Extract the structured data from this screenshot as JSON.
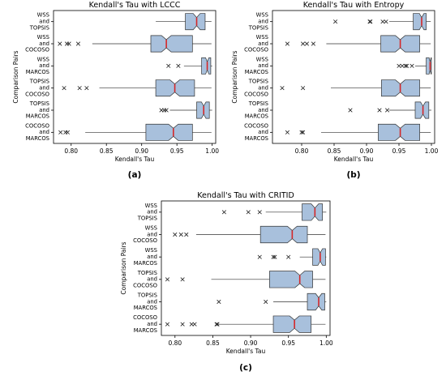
{
  "chart_data": [
    {
      "type": "boxplot",
      "panel_label": "(a)",
      "title": "Kendall's Tau with LCCC",
      "xlabel": "Kendall's Tau",
      "ylabel": "Comparison Pairs",
      "xlim": [
        0.775,
        1.005
      ],
      "xticks": [
        "0.80",
        "0.85",
        "0.90",
        "0.95",
        "1.00"
      ],
      "series": [
        {
          "name": [
            "WSS",
            "and",
            "TOPSIS"
          ],
          "whislo": 0.92,
          "q1": 0.962,
          "med": 0.978,
          "q3": 0.99,
          "whishi": 0.999,
          "fliers": []
        },
        {
          "name": [
            "WSS",
            "and",
            "COCOSO"
          ],
          "whislo": 0.83,
          "q1": 0.913,
          "med": 0.935,
          "q3": 0.972,
          "whishi": 0.999,
          "fliers": [
            0.784,
            0.794,
            0.797,
            0.81
          ]
        },
        {
          "name": [
            "WSS",
            "and",
            "MARCOS"
          ],
          "whislo": 0.96,
          "q1": 0.985,
          "med": 0.993,
          "q3": 0.998,
          "whishi": 1.0,
          "fliers": [
            0.938,
            0.952
          ]
        },
        {
          "name": [
            "TOPSIS",
            "and",
            "COCOSO"
          ],
          "whislo": 0.84,
          "q1": 0.92,
          "med": 0.947,
          "q3": 0.975,
          "whishi": 0.999,
          "fliers": [
            0.79,
            0.812,
            0.822
          ]
        },
        {
          "name": [
            "TOPSIS",
            "and",
            "MARCOS"
          ],
          "whislo": 0.94,
          "q1": 0.978,
          "med": 0.988,
          "q3": 0.996,
          "whishi": 1.0,
          "fliers": [
            0.928,
            0.932,
            0.935
          ]
        },
        {
          "name": [
            "COCOSO",
            "and",
            "MARCOS"
          ],
          "whislo": 0.82,
          "q1": 0.906,
          "med": 0.945,
          "q3": 0.972,
          "whishi": 0.999,
          "fliers": [
            0.785,
            0.792,
            0.795
          ]
        }
      ]
    },
    {
      "type": "boxplot",
      "panel_label": "(b)",
      "title": "Kendall's Tau with Entropy",
      "xlabel": "Kendall's Tau",
      "ylabel": "Comparison Pairs",
      "xlim": [
        0.755,
        1.005
      ],
      "xticks": [
        "0.80",
        "0.85",
        "0.90",
        "0.95",
        "1.00"
      ],
      "series": [
        {
          "name": [
            "WSS",
            "and",
            "TOPSIS"
          ],
          "whislo": 0.935,
          "q1": 0.972,
          "med": 0.985,
          "q3": 0.992,
          "whishi": 0.999,
          "fliers": [
            0.852,
            0.905,
            0.906,
            0.925,
            0.93
          ]
        },
        {
          "name": [
            "WSS",
            "and",
            "COCOSO"
          ],
          "whislo": 0.838,
          "q1": 0.922,
          "med": 0.952,
          "q3": 0.982,
          "whishi": 0.999,
          "fliers": [
            0.778,
            0.802,
            0.808,
            0.818
          ]
        },
        {
          "name": [
            "WSS",
            "and",
            "MARCOS"
          ],
          "whislo": 0.975,
          "q1": 0.992,
          "med": 0.998,
          "q3": 1.0,
          "whishi": 1.0,
          "fliers": [
            0.95,
            0.955,
            0.96,
            0.962,
            0.97
          ]
        },
        {
          "name": [
            "TOPSIS",
            "and",
            "COCOSO"
          ],
          "whislo": 0.845,
          "q1": 0.923,
          "med": 0.952,
          "q3": 0.982,
          "whishi": 0.999,
          "fliers": [
            0.77,
            0.802
          ]
        },
        {
          "name": [
            "TOPSIS",
            "and",
            "MARCOS"
          ],
          "whislo": 0.935,
          "q1": 0.975,
          "med": 0.987,
          "q3": 0.996,
          "whishi": 1.0,
          "fliers": [
            0.875,
            0.92,
            0.932
          ]
        },
        {
          "name": [
            "COCOSO",
            "and",
            "MARCOS"
          ],
          "whislo": 0.83,
          "q1": 0.918,
          "med": 0.952,
          "q3": 0.982,
          "whishi": 0.999,
          "fliers": [
            0.778,
            0.8,
            0.802
          ]
        }
      ]
    },
    {
      "type": "boxplot",
      "panel_label": "(c)",
      "title": "Kendall's Tau with CRITID",
      "xlabel": "Kendall's Tau",
      "ylabel": "Comparison Pairs",
      "xlim": [
        0.782,
        1.005
      ],
      "xticks": [
        "0.80",
        "0.85",
        "0.90",
        "0.95",
        "1.00"
      ],
      "series": [
        {
          "name": [
            "WSS",
            "and",
            "TOPSIS"
          ],
          "whislo": 0.92,
          "q1": 0.968,
          "med": 0.985,
          "q3": 0.995,
          "whishi": 1.0,
          "fliers": [
            0.865,
            0.897,
            0.912
          ]
        },
        {
          "name": [
            "WSS",
            "and",
            "COCOSO"
          ],
          "whislo": 0.828,
          "q1": 0.913,
          "med": 0.955,
          "q3": 0.975,
          "whishi": 0.999,
          "fliers": [
            0.8,
            0.808,
            0.815
          ]
        },
        {
          "name": [
            "WSS",
            "and",
            "MARCOS"
          ],
          "whislo": 0.965,
          "q1": 0.982,
          "med": 0.992,
          "q3": 0.999,
          "whishi": 1.0,
          "fliers": [
            0.912,
            0.93,
            0.932,
            0.95
          ]
        },
        {
          "name": [
            "TOPSIS",
            "and",
            "COCOSO"
          ],
          "whislo": 0.848,
          "q1": 0.925,
          "med": 0.965,
          "q3": 0.982,
          "whishi": 0.999,
          "fliers": [
            0.79,
            0.81
          ]
        },
        {
          "name": [
            "TOPSIS",
            "and",
            "MARCOS"
          ],
          "whislo": 0.93,
          "q1": 0.975,
          "med": 0.99,
          "q3": 0.998,
          "whishi": 1.0,
          "fliers": [
            0.858,
            0.92
          ]
        },
        {
          "name": [
            "COCOSO",
            "and",
            "MARCOS"
          ],
          "whislo": 0.855,
          "q1": 0.93,
          "med": 0.958,
          "q3": 0.98,
          "whishi": 0.999,
          "fliers": [
            0.79,
            0.81,
            0.822,
            0.826,
            0.855,
            0.856
          ]
        }
      ]
    }
  ],
  "colors": {
    "box_fill": "#a8c0dc",
    "box_edge": "#333333",
    "median": "#d62728",
    "axis": "#000000"
  }
}
